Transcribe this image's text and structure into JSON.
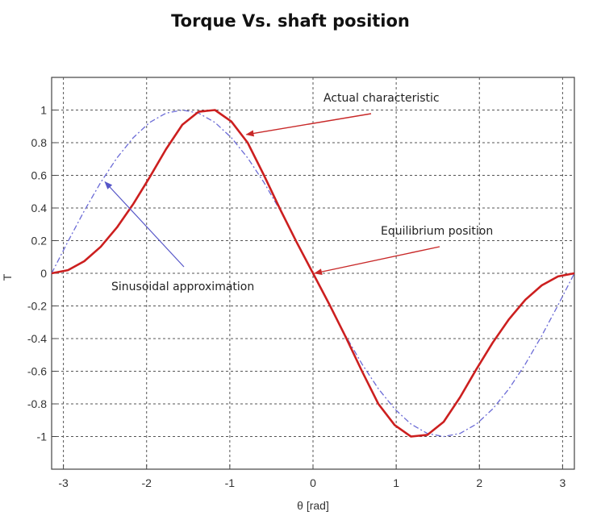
{
  "chart_data": {
    "type": "line",
    "title": "Torque Vs. shaft position",
    "xlabel": "θ  [rad]",
    "ylabel": "T",
    "xlim": [
      -3.1416,
      3.1416
    ],
    "ylim": [
      -1.2,
      1.2
    ],
    "grid": true,
    "xticks": [
      -3,
      -2,
      -1,
      0,
      1,
      2,
      3
    ],
    "yticks": [
      1,
      0.8,
      0.6,
      0.4,
      0.2,
      0,
      -0.2,
      -0.4,
      -0.6,
      -0.8,
      -1
    ],
    "xtick_labels": [
      "-3",
      "-2",
      "-1",
      "0",
      "1",
      "2",
      "3"
    ],
    "ytick_labels": [
      "1",
      "0.8",
      "0.6",
      "0.4",
      "0.2",
      "0",
      "-0.2",
      "-0.4",
      "-0.6",
      "-0.8",
      "-1"
    ],
    "series": [
      {
        "style": "solid",
        "color": "#cc1f1f",
        "x": [
          -3.1416,
          -2.9452,
          -2.7489,
          -2.5525,
          -2.3562,
          -2.1598,
          -1.9635,
          -1.7671,
          -1.5708,
          -1.3744,
          -1.1781,
          -0.9817,
          -0.7854,
          -0.589,
          -0.3927,
          -0.1963,
          0,
          0.1963,
          0.3927,
          0.589,
          0.7854,
          0.9817,
          1.1781,
          1.3744,
          1.5708,
          1.7671,
          1.9635,
          2.1598,
          2.3562,
          2.5525,
          2.7489,
          2.9452,
          3.1416
        ],
        "y": [
          0,
          0.019,
          0.074,
          0.162,
          0.281,
          0.425,
          0.588,
          0.76,
          0.91,
          0.99,
          1.0,
          0.93,
          0.8,
          0.6,
          0.39,
          0.19,
          0,
          -0.19,
          -0.39,
          -0.6,
          -0.8,
          -0.93,
          -1.0,
          -0.99,
          -0.91,
          -0.76,
          -0.588,
          -0.425,
          -0.281,
          -0.162,
          -0.074,
          -0.019,
          0
        ]
      },
      {
        "style": "dashdot",
        "color": "#6b6bd6",
        "x": [
          -3.1416,
          -2.9452,
          -2.7489,
          -2.5525,
          -2.3562,
          -2.1598,
          -1.9635,
          -1.7671,
          -1.5708,
          -1.3744,
          -1.1781,
          -0.9817,
          -0.7854,
          -0.589,
          -0.3927,
          -0.1963,
          0,
          0.1963,
          0.3927,
          0.589,
          0.7854,
          0.9817,
          1.1781,
          1.3744,
          1.5708,
          1.7671,
          1.9635,
          2.1598,
          2.3562,
          2.5525,
          2.7489,
          2.9452,
          3.1416
        ],
        "y": [
          0,
          0.195,
          0.383,
          0.556,
          0.707,
          0.831,
          0.924,
          0.981,
          1.0,
          0.981,
          0.924,
          0.831,
          0.707,
          0.556,
          0.383,
          0.195,
          0,
          -0.195,
          -0.383,
          -0.556,
          -0.707,
          -0.831,
          -0.924,
          -0.981,
          -1.0,
          -0.981,
          -0.924,
          -0.831,
          -0.707,
          -0.556,
          -0.383,
          -0.195,
          0
        ]
      }
    ],
    "annotations": [
      {
        "text": "Actual characteristic",
        "arrow_color": "#c82828",
        "target": [
          -0.8,
          0.85
        ]
      },
      {
        "text": "Equilibrium position",
        "arrow_color": "#c82828",
        "target": [
          0.02,
          0.0
        ]
      },
      {
        "text": "Sinusoidal approximation",
        "arrow_color": "#5656c8",
        "target": [
          -2.5,
          0.56
        ]
      }
    ]
  }
}
